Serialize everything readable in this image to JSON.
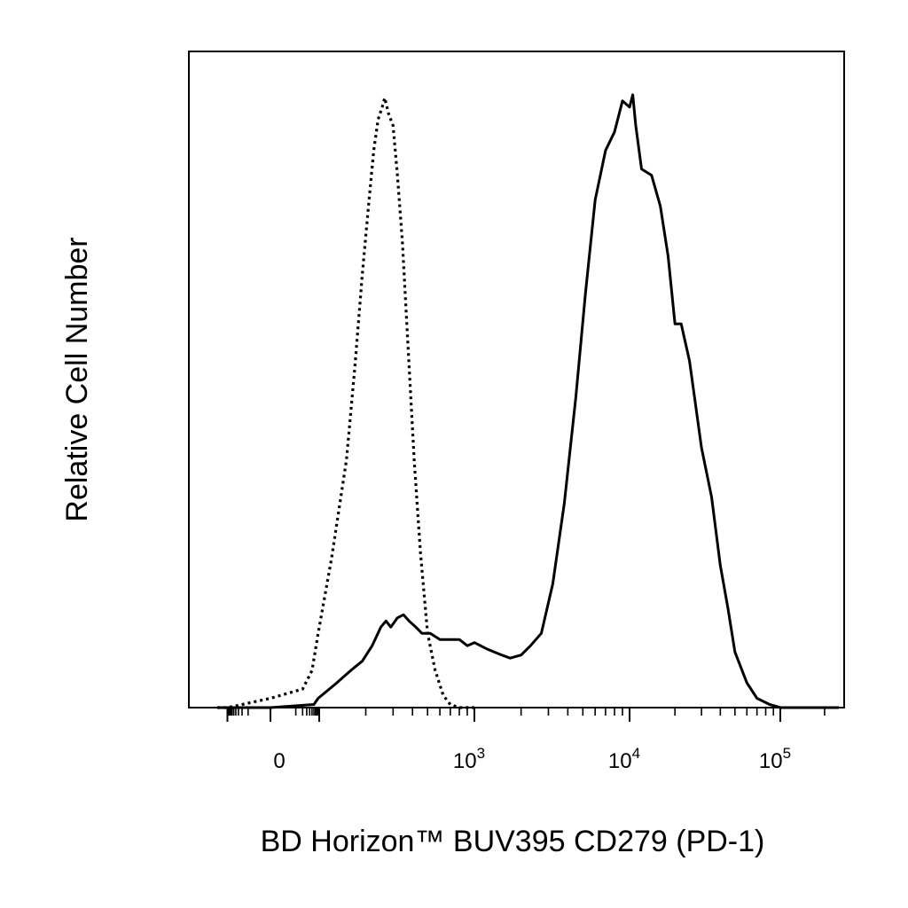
{
  "chart_data": {
    "type": "line",
    "title": "",
    "xlabel": "BD Horizon™ BUV395  CD279 (PD-1)",
    "ylabel": "Relative Cell Number",
    "x_scale": "biexponential",
    "xlim": [
      -300,
      250000
    ],
    "ylim": [
      0,
      1.06
    ],
    "grid": false,
    "legend": "none",
    "x_tick_labels": [
      {
        "value": 0,
        "base": "0",
        "exp": ""
      },
      {
        "value": 1000,
        "base": "10",
        "exp": "3"
      },
      {
        "value": 10000,
        "base": "10",
        "exp": "4"
      },
      {
        "value": 100000,
        "base": "10",
        "exp": "5"
      }
    ],
    "series": [
      {
        "style": "dotted",
        "color": "#000000",
        "points": [
          [
            -300,
            0
          ],
          [
            -100,
            0
          ],
          [
            -20,
            0.005
          ],
          [
            0,
            0.015
          ],
          [
            20,
            0.03
          ],
          [
            50,
            0.06
          ],
          [
            90,
            0.12
          ],
          [
            120,
            0.24
          ],
          [
            150,
            0.4
          ],
          [
            170,
            0.55
          ],
          [
            190,
            0.7
          ],
          [
            210,
            0.82
          ],
          [
            225,
            0.9
          ],
          [
            240,
            0.95
          ],
          [
            255,
            0.97
          ],
          [
            265,
            0.985
          ],
          [
            280,
            0.96
          ],
          [
            300,
            0.94
          ],
          [
            320,
            0.86
          ],
          [
            345,
            0.75
          ],
          [
            375,
            0.58
          ],
          [
            410,
            0.4
          ],
          [
            450,
            0.25
          ],
          [
            500,
            0.12
          ],
          [
            560,
            0.06
          ],
          [
            630,
            0.02
          ],
          [
            700,
            0.005
          ],
          [
            800,
            0
          ],
          [
            1000,
            0
          ]
        ]
      },
      {
        "style": "solid",
        "color": "#000000",
        "points": [
          [
            -300,
            0
          ],
          [
            0,
            0
          ],
          [
            60,
            0.005
          ],
          [
            90,
            0.015
          ],
          [
            130,
            0.04
          ],
          [
            160,
            0.06
          ],
          [
            190,
            0.075
          ],
          [
            220,
            0.1
          ],
          [
            250,
            0.13
          ],
          [
            270,
            0.14
          ],
          [
            290,
            0.13
          ],
          [
            320,
            0.145
          ],
          [
            350,
            0.15
          ],
          [
            380,
            0.14
          ],
          [
            420,
            0.13
          ],
          [
            460,
            0.12
          ],
          [
            520,
            0.12
          ],
          [
            600,
            0.11
          ],
          [
            700,
            0.11
          ],
          [
            800,
            0.11
          ],
          [
            900,
            0.1
          ],
          [
            1000,
            0.105
          ],
          [
            1200,
            0.095
          ],
          [
            1500,
            0.085
          ],
          [
            1700,
            0.08
          ],
          [
            2000,
            0.085
          ],
          [
            2300,
            0.1
          ],
          [
            2700,
            0.12
          ],
          [
            3200,
            0.2
          ],
          [
            3800,
            0.33
          ],
          [
            4500,
            0.5
          ],
          [
            5200,
            0.67
          ],
          [
            6000,
            0.82
          ],
          [
            7000,
            0.9
          ],
          [
            8000,
            0.93
          ],
          [
            9000,
            0.98
          ],
          [
            10000,
            0.97
          ],
          [
            10500,
            0.99
          ],
          [
            11000,
            0.94
          ],
          [
            12000,
            0.87
          ],
          [
            14000,
            0.86
          ],
          [
            16000,
            0.81
          ],
          [
            18000,
            0.73
          ],
          [
            20000,
            0.62
          ],
          [
            22000,
            0.62
          ],
          [
            25000,
            0.56
          ],
          [
            30000,
            0.42
          ],
          [
            35000,
            0.34
          ],
          [
            40000,
            0.23
          ],
          [
            45000,
            0.16
          ],
          [
            50000,
            0.09
          ],
          [
            60000,
            0.04
          ],
          [
            70000,
            0.015
          ],
          [
            85000,
            0.005
          ],
          [
            100000,
            0
          ],
          [
            250000,
            0
          ]
        ]
      }
    ]
  }
}
